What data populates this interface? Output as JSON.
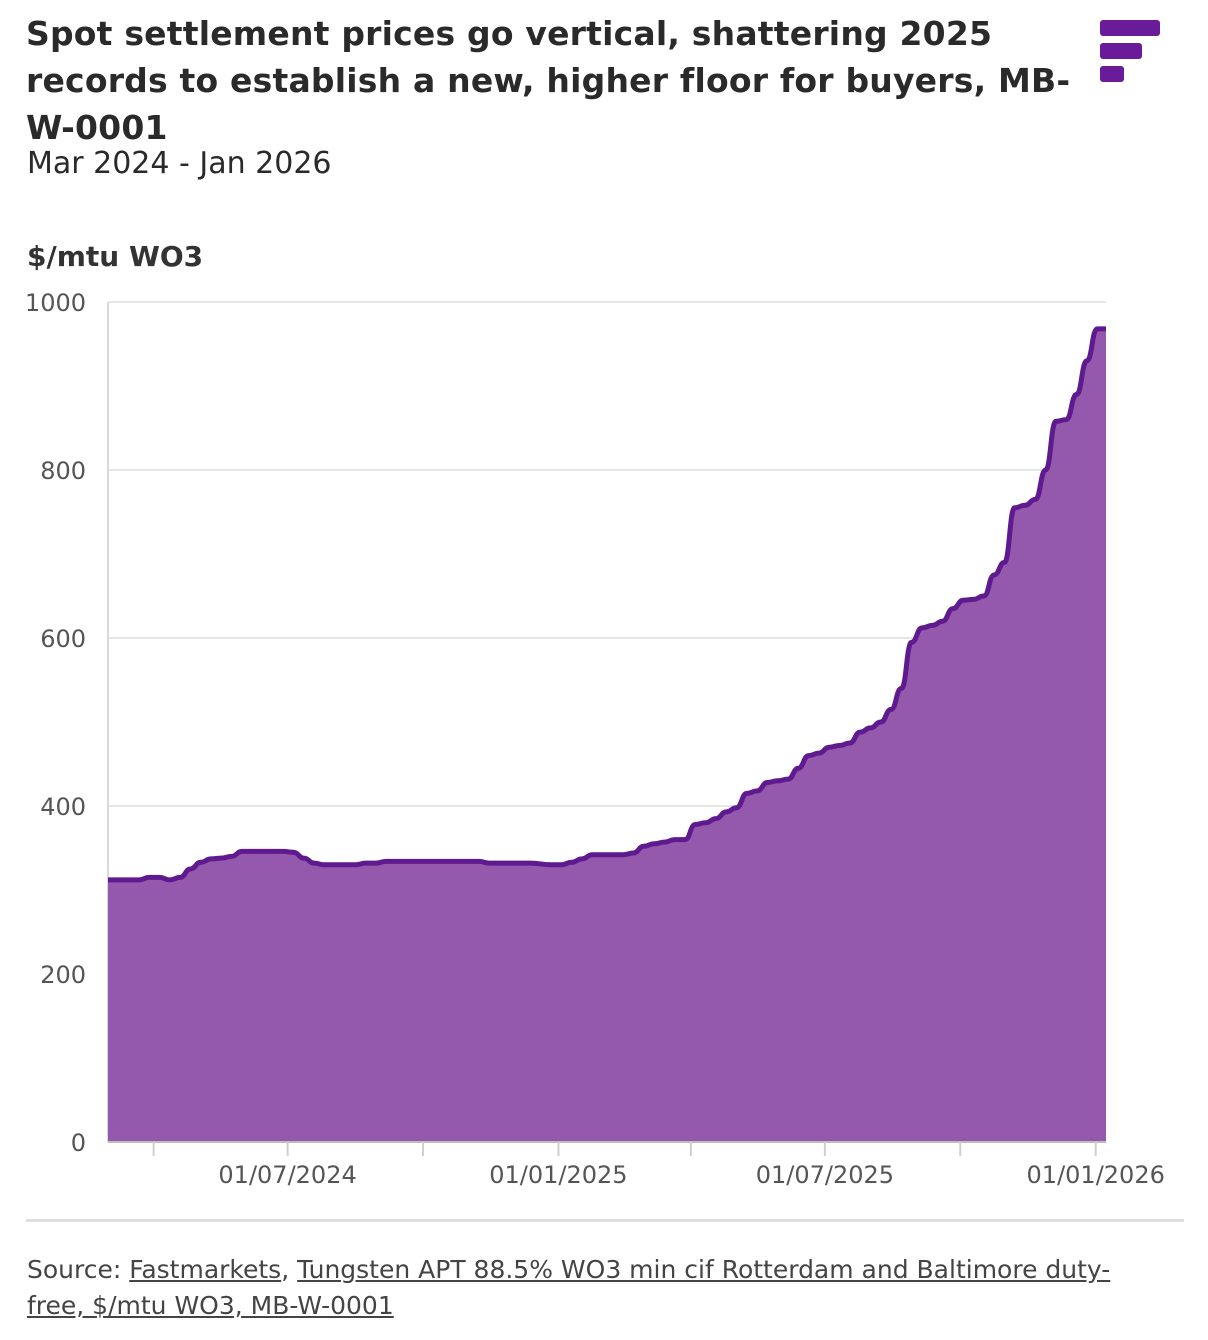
{
  "header": {
    "title": "Spot settlement prices go vertical, shattering 2025 records to establish a new, higher floor for buyers, MB-W-0001",
    "subtitle": "Mar 2024 - Jan 2026",
    "logo_icon": "fastmarkets-logo-icon",
    "brand_color": "#6a1b9a"
  },
  "chart_data": {
    "type": "area",
    "title": "Spot settlement prices go vertical, shattering 2025 records to establish a new, higher floor for buyers, MB-W-0001",
    "subtitle": "Mar 2024 - Jan 2026",
    "ylabel": "$/mtu WO3",
    "xlabel": "",
    "ylim": [
      0,
      1000
    ],
    "yticks": [
      0,
      200,
      400,
      600,
      800,
      1000
    ],
    "xlim": [
      "2024-03-01",
      "2026-01-08"
    ],
    "xticks": [
      "2024-04-01",
      "2024-07-01",
      "2024-10-01",
      "2025-01-01",
      "2025-04-01",
      "2025-07-01",
      "2025-10-01",
      "2026-01-01"
    ],
    "xtick_labels": [
      "",
      "01/07/2024",
      "",
      "01/01/2025",
      "",
      "01/07/2025",
      "",
      "01/01/2026"
    ],
    "grid": true,
    "line_color": "#5f1a8f",
    "fill_color": "#9459ad",
    "series": [
      {
        "x": [
          "2024-03-01",
          "2024-03-15",
          "2024-03-22",
          "2024-03-29",
          "2024-04-05",
          "2024-04-12",
          "2024-04-19",
          "2024-04-26",
          "2024-05-03",
          "2024-05-10",
          "2024-05-17",
          "2024-05-24",
          "2024-05-31",
          "2024-06-07",
          "2024-06-14",
          "2024-06-21",
          "2024-06-28",
          "2024-07-05",
          "2024-07-12",
          "2024-07-19",
          "2024-07-26",
          "2024-08-02",
          "2024-08-16",
          "2024-08-23",
          "2024-08-30",
          "2024-09-06",
          "2024-09-13",
          "2024-10-04",
          "2024-10-25",
          "2024-11-08",
          "2024-11-15",
          "2024-12-06",
          "2024-12-13",
          "2024-12-27",
          "2025-01-03",
          "2025-01-10",
          "2025-01-17",
          "2025-01-24",
          "2025-02-07",
          "2025-02-14",
          "2025-02-21",
          "2025-02-28",
          "2025-03-07",
          "2025-03-14",
          "2025-03-21",
          "2025-03-28",
          "2025-04-04",
          "2025-04-11",
          "2025-04-18",
          "2025-04-25",
          "2025-05-02",
          "2025-05-09",
          "2025-05-16",
          "2025-05-23",
          "2025-05-30",
          "2025-06-06",
          "2025-06-13",
          "2025-06-20",
          "2025-06-27",
          "2025-07-04",
          "2025-07-11",
          "2025-07-18",
          "2025-07-25",
          "2025-08-01",
          "2025-08-08",
          "2025-08-15",
          "2025-08-22",
          "2025-08-29",
          "2025-09-05",
          "2025-09-12",
          "2025-09-19",
          "2025-09-26",
          "2025-10-03",
          "2025-10-10",
          "2025-10-17",
          "2025-10-24",
          "2025-10-31",
          "2025-11-07",
          "2025-11-14",
          "2025-11-21",
          "2025-11-28",
          "2025-12-05",
          "2025-12-12",
          "2025-12-19",
          "2025-12-26",
          "2026-01-02",
          "2026-01-08"
        ],
        "values": [
          312,
          312,
          312,
          315,
          315,
          312,
          315,
          325,
          333,
          337,
          338,
          340,
          346,
          346,
          346,
          346,
          346,
          345,
          338,
          332,
          330,
          330,
          330,
          332,
          332,
          334,
          334,
          334,
          334,
          334,
          332,
          332,
          332,
          330,
          330,
          333,
          337,
          342,
          342,
          342,
          344,
          352,
          355,
          357,
          360,
          360,
          378,
          380,
          385,
          393,
          398,
          415,
          418,
          428,
          430,
          432,
          445,
          460,
          463,
          470,
          472,
          475,
          488,
          493,
          500,
          515,
          540,
          595,
          612,
          615,
          620,
          635,
          645,
          646,
          650,
          675,
          690,
          755,
          758,
          765,
          800,
          858,
          860,
          890,
          930,
          968,
          968
        ]
      }
    ]
  },
  "footer": {
    "source_prefix": "Source: ",
    "source_link_1": "Fastmarkets",
    "separator": ", ",
    "source_link_2": "Tungsten APT 88.5% WO3 min cif Rotterdam and Baltimore duty-free, $/mtu WO3, MB-W-0001"
  }
}
